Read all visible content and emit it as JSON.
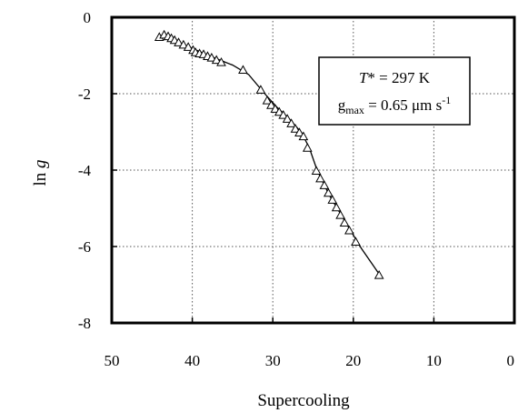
{
  "chart_data": {
    "type": "scatter",
    "title": "",
    "xlabel": "Supercooling",
    "ylabel_main": "ln ",
    "ylabel_italic": "g",
    "xlim": [
      50,
      0
    ],
    "ylim": [
      -8,
      0
    ],
    "x_ticks": [
      50,
      40,
      30,
      20,
      10,
      0
    ],
    "y_ticks": [
      0,
      -2,
      -4,
      -6,
      -8
    ],
    "x_tick_labels": [
      "50",
      "40",
      "30",
      "20",
      "10",
      "0"
    ],
    "y_tick_labels": [
      "0",
      "-2",
      "-4",
      "-6",
      "-8"
    ],
    "grid": true,
    "legend_position": "top-right",
    "annotation": {
      "line1_symbol": "T",
      "line1_rest": "* = 297 K",
      "line2_base": "g",
      "line2_sub": "max",
      "line2_rest": " = 0.65 μm s",
      "line2_sup": "-1"
    },
    "series": [
      {
        "marker": "triangle-open",
        "color": "#000000",
        "x": [
          44.1,
          43.5,
          43.0,
          42.6,
          42.2,
          41.7,
          41.1,
          40.5,
          39.9,
          39.6,
          39.1,
          38.6,
          38.1,
          37.6,
          37.0,
          36.4,
          33.7,
          31.5,
          30.7,
          30.2,
          29.7,
          29.2,
          28.7,
          28.2,
          27.7,
          27.2,
          26.7,
          26.2,
          25.7,
          24.6,
          24.1,
          23.6,
          23.1,
          22.6,
          22.1,
          21.6,
          21.1,
          20.5,
          19.7,
          16.8
        ],
        "y": [
          -0.52,
          -0.46,
          -0.5,
          -0.55,
          -0.6,
          -0.66,
          -0.72,
          -0.78,
          -0.86,
          -0.92,
          -0.95,
          -0.97,
          -1.02,
          -1.06,
          -1.12,
          -1.18,
          -1.38,
          -1.9,
          -2.18,
          -2.3,
          -2.4,
          -2.48,
          -2.56,
          -2.66,
          -2.78,
          -2.92,
          -3.02,
          -3.12,
          -3.42,
          -4.02,
          -4.22,
          -4.4,
          -4.6,
          -4.78,
          -4.98,
          -5.18,
          -5.38,
          -5.58,
          -5.88,
          -6.75
        ]
      },
      {
        "type": "line",
        "color": "#000000",
        "x": [
          44.1,
          41.0,
          38.0,
          35.0,
          33.0,
          31.0,
          29.5,
          28.0,
          26.5,
          25.5,
          24.5,
          23.0,
          21.0,
          19.0,
          16.8
        ],
        "y": [
          -0.46,
          -0.72,
          -1.0,
          -1.25,
          -1.5,
          -2.0,
          -2.35,
          -2.65,
          -3.0,
          -3.4,
          -4.0,
          -4.65,
          -5.35,
          -6.05,
          -6.72
        ]
      }
    ]
  }
}
